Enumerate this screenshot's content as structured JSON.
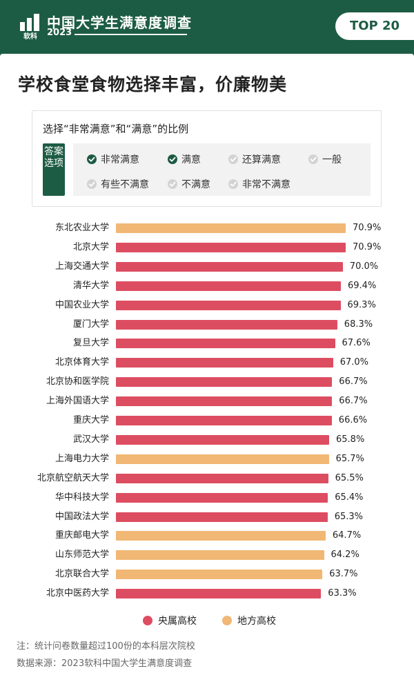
{
  "header": {
    "logo_text": "软科",
    "title": "中国大学生满意度调查",
    "year": "2023",
    "badge": "TOP 20"
  },
  "main_title": "学校食堂食物选择丰富，价廉物美",
  "legend_box": {
    "caption": "选择“非常满意”和“满意”的比例",
    "tag": "答案选项",
    "options": [
      {
        "label": "非常满意",
        "checked": true
      },
      {
        "label": "满意",
        "checked": true
      },
      {
        "label": "还算满意",
        "checked": false
      },
      {
        "label": "一般",
        "checked": false
      },
      {
        "label": "有些不满意",
        "checked": false
      },
      {
        "label": "不满意",
        "checked": false
      },
      {
        "label": "非常不满意",
        "checked": false
      }
    ]
  },
  "colors": {
    "brand_green": "#1d5c44",
    "central": "#dd4d61",
    "local": "#f1b774",
    "check_on": "#1d5c44",
    "check_off": "#d3d3d3"
  },
  "chart_data": {
    "type": "bar",
    "orientation": "horizontal",
    "unit": "%",
    "categories": [
      "东北农业大学",
      "北京大学",
      "上海交通大学",
      "清华大学",
      "中国农业大学",
      "厦门大学",
      "复旦大学",
      "北京体育大学",
      "北京协和医学院",
      "上海外国语大学",
      "重庆大学",
      "武汉大学",
      "上海电力大学",
      "北京航空航天大学",
      "华中科技大学",
      "中国政法大学",
      "重庆邮电大学",
      "山东师范大学",
      "北京联合大学",
      "北京中医药大学"
    ],
    "values": [
      70.9,
      70.9,
      70.0,
      69.4,
      69.3,
      68.3,
      67.6,
      67.0,
      66.7,
      66.7,
      66.6,
      65.8,
      65.7,
      65.5,
      65.4,
      65.3,
      64.7,
      64.2,
      63.7,
      63.3
    ],
    "value_labels": [
      "70.9%",
      "70.9%",
      "70.0%",
      "69.4%",
      "69.3%",
      "68.3%",
      "67.6%",
      "67.0%",
      "66.7%",
      "66.7%",
      "66.6%",
      "65.8%",
      "65.7%",
      "65.5%",
      "65.4%",
      "65.3%",
      "64.7%",
      "64.2%",
      "63.7%",
      "63.3%"
    ],
    "group": [
      "local",
      "central",
      "central",
      "central",
      "central",
      "central",
      "central",
      "central",
      "central",
      "central",
      "central",
      "central",
      "local",
      "central",
      "central",
      "central",
      "local",
      "local",
      "local",
      "central"
    ],
    "legend": [
      {
        "key": "central",
        "label": "央属高校"
      },
      {
        "key": "local",
        "label": "地方高校"
      }
    ],
    "grid": false
  },
  "notes": {
    "note1": "注：统计问卷数量超过100份的本科层次院校",
    "note2": "数据来源：2023软科中国大学生满意度调查"
  }
}
